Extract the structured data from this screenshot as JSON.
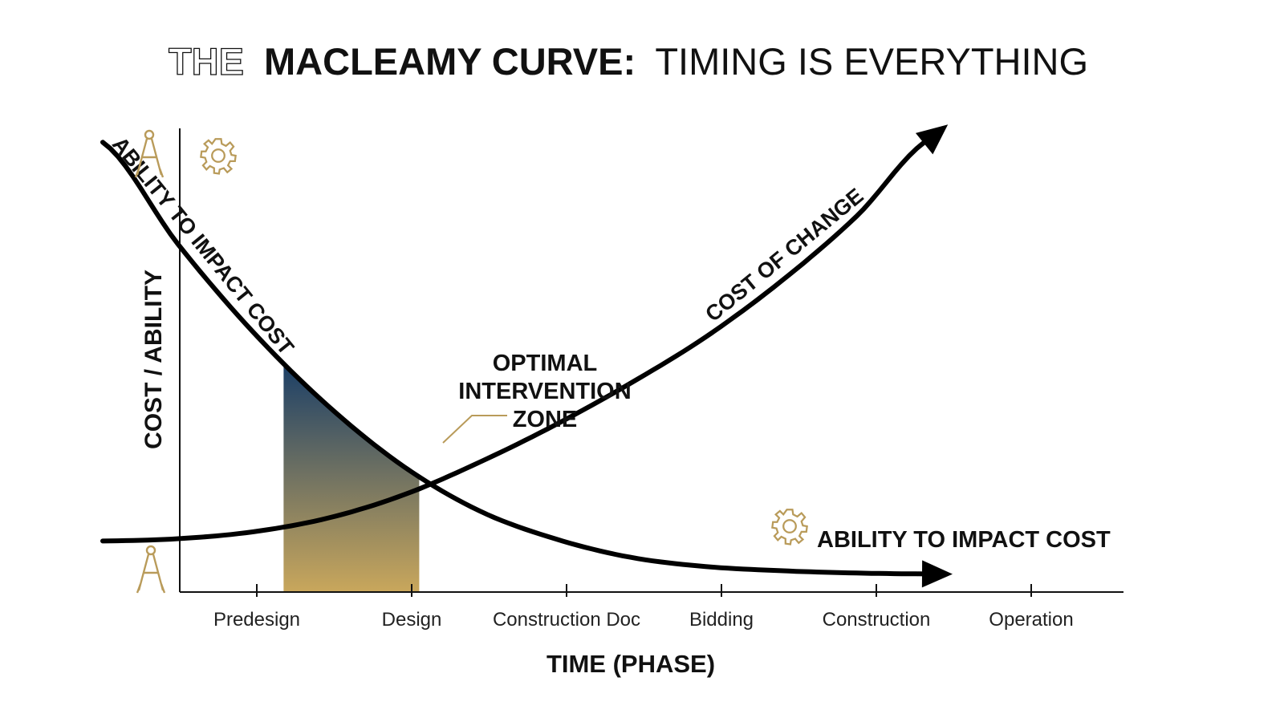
{
  "chart_data": {
    "type": "line",
    "title": {
      "outline": "THE",
      "bold": "MACLEAMY CURVE:",
      "light": "TIMING IS EVERYTHING"
    },
    "xlabel": "TIME (PHASE)",
    "ylabel": "COST / ABILITY",
    "categories": [
      "Predesign",
      "Design",
      "Construction Doc",
      "Bidding",
      "Construction",
      "Operation"
    ],
    "ylim": [
      0,
      100
    ],
    "x": [
      0,
      0.5,
      1,
      1.5,
      2,
      2.5,
      3,
      3.5,
      4,
      4.5,
      5,
      5.5
    ],
    "series": [
      {
        "name": "ABILITY TO IMPACT COST",
        "inline_label": "ABILITY TO IMPACT COST",
        "end_label": "ABILITY TO IMPACT COST",
        "values": [
          97,
          75,
          56,
          40,
          27,
          17.5,
          11.5,
          7.5,
          5.5,
          4.6,
          4.1,
          3.9
        ]
      },
      {
        "name": "COST OF CHANGE",
        "inline_label": "COST OF CHANGE",
        "values": [
          11,
          11.5,
          13,
          16,
          21,
          28,
          36,
          45,
          55,
          67,
          81,
          98
        ]
      }
    ],
    "highlight_zone": {
      "label": [
        "OPTIMAL",
        "INTERVENTION",
        "ZONE"
      ],
      "x_range": [
        1.2,
        2.1
      ]
    },
    "colors": {
      "line": "#000000",
      "zone_top": "#1b3f67",
      "zone_bottom": "#c9a75c",
      "icon_gold": "#b99b5a",
      "outline_title": "#111111"
    },
    "icons": [
      "drafting-compass-icon",
      "gear-icon"
    ]
  }
}
